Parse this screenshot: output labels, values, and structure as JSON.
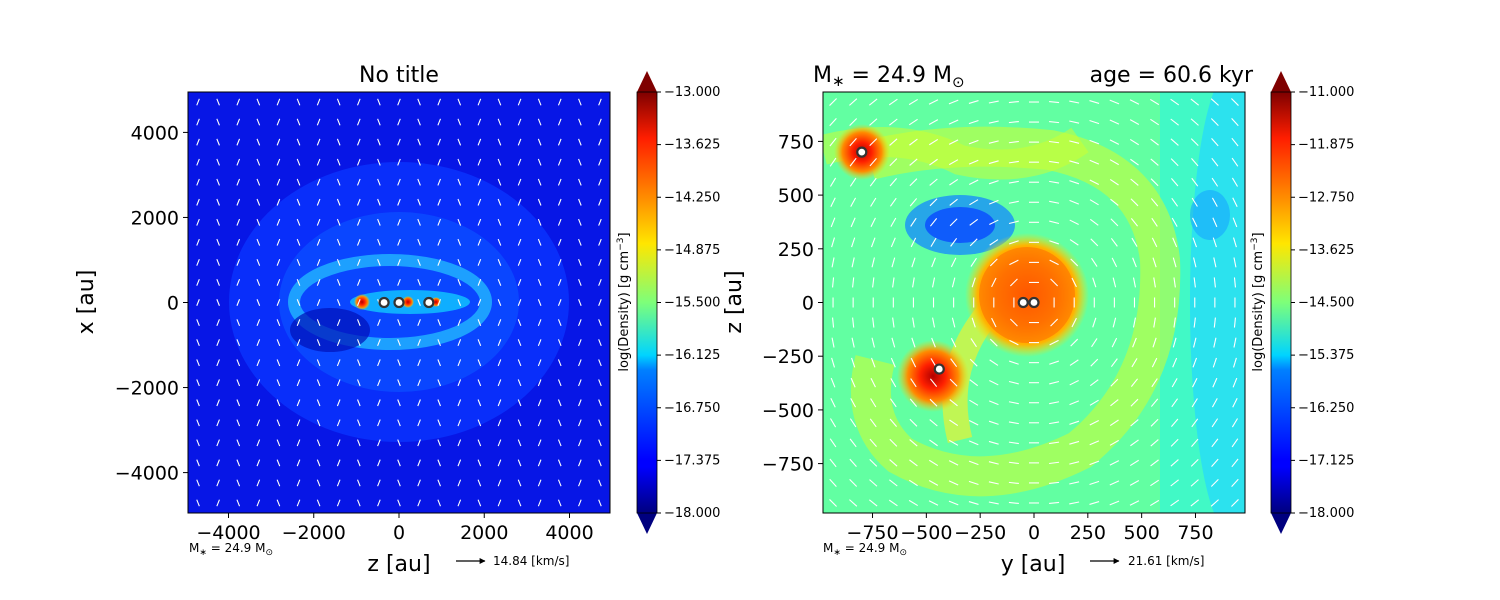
{
  "chart_data": [
    {
      "type": "heatmap",
      "title": "No title",
      "xlabel": "z [au]",
      "ylabel": "x [au]",
      "xlim": [
        -4950,
        4950
      ],
      "ylim": [
        -4950,
        4950
      ],
      "x_ticks": [
        -4000,
        -2000,
        0,
        2000,
        4000
      ],
      "y_ticks": [
        -4000,
        -2000,
        0,
        2000,
        4000
      ],
      "x_tick_labels": [
        "−4000",
        "−2000",
        "0",
        "2000",
        "4000"
      ],
      "y_tick_labels": [
        "−4000",
        "−2000",
        "0",
        "2000",
        "4000"
      ],
      "colorbar": {
        "label": "log(Density) [g cm$^{-3}$]",
        "label_text": "log(Density) [g cm",
        "label_sup": "−3",
        "label_close": "]",
        "min": -18.0,
        "max": -13.0,
        "ticks": [
          "−13.000",
          "−13.625",
          "−14.250",
          "−14.875",
          "−15.500",
          "−16.125",
          "−16.750",
          "−17.375",
          "−18.000"
        ],
        "colormap": "jet"
      },
      "background_level": -17.6,
      "stars": [
        {
          "x": -350,
          "y": 0
        },
        {
          "x": 0,
          "y": 0
        },
        {
          "x": 700,
          "y": 0
        }
      ],
      "mass_annotation": "M$_*$ = 24.9 M$_\\odot$",
      "mass_text": "M",
      "mass_sub": "∗",
      "mass_mid": " = 24.9 M",
      "mass_sun": "⊙",
      "vector_key": "14.84 [km/s]"
    },
    {
      "type": "heatmap",
      "title_left": "M",
      "title_sub": "∗",
      "title_mid": " = 24.9 M",
      "title_sun": "⊙",
      "title_right": "age = 60.6 kyr",
      "xlabel": "y [au]",
      "ylabel": "z [au]",
      "xlim": [
        -980,
        980
      ],
      "ylim": [
        -980,
        980
      ],
      "x_ticks": [
        -750,
        -500,
        -250,
        0,
        250,
        500,
        750
      ],
      "y_ticks": [
        -750,
        -500,
        -250,
        0,
        250,
        500,
        750
      ],
      "x_tick_labels": [
        "−750",
        "−500",
        "−250",
        "0",
        "250",
        "500",
        "750"
      ],
      "y_tick_labels": [
        "−750",
        "−500",
        "−250",
        "0",
        "250",
        "500",
        "750"
      ],
      "colorbar": {
        "label": "log(Density) [g cm$^{-3}$]",
        "label_text": "log(Density) [g cm",
        "label_sup": "−3",
        "label_close": "]",
        "min": -18.0,
        "max": -11.0,
        "ticks": [
          "−11.000",
          "−11.875",
          "−12.750",
          "−13.625",
          "−14.500",
          "−15.375",
          "−16.250",
          "−17.125",
          "−18.000"
        ],
        "colormap": "jet"
      },
      "background_level": -14.3,
      "stars": [
        {
          "x": -50,
          "y": 0
        },
        {
          "x": 0,
          "y": 0
        },
        {
          "x": -800,
          "y": 700
        },
        {
          "x": -440,
          "y": -310
        }
      ],
      "mass_annotation": "M$_*$ = 24.9 M$_\\odot$",
      "mass_text": "M",
      "mass_sub": "∗",
      "mass_mid": " = 24.9 M",
      "mass_sun": "⊙",
      "vector_key": "21.61 [km/s]"
    }
  ]
}
